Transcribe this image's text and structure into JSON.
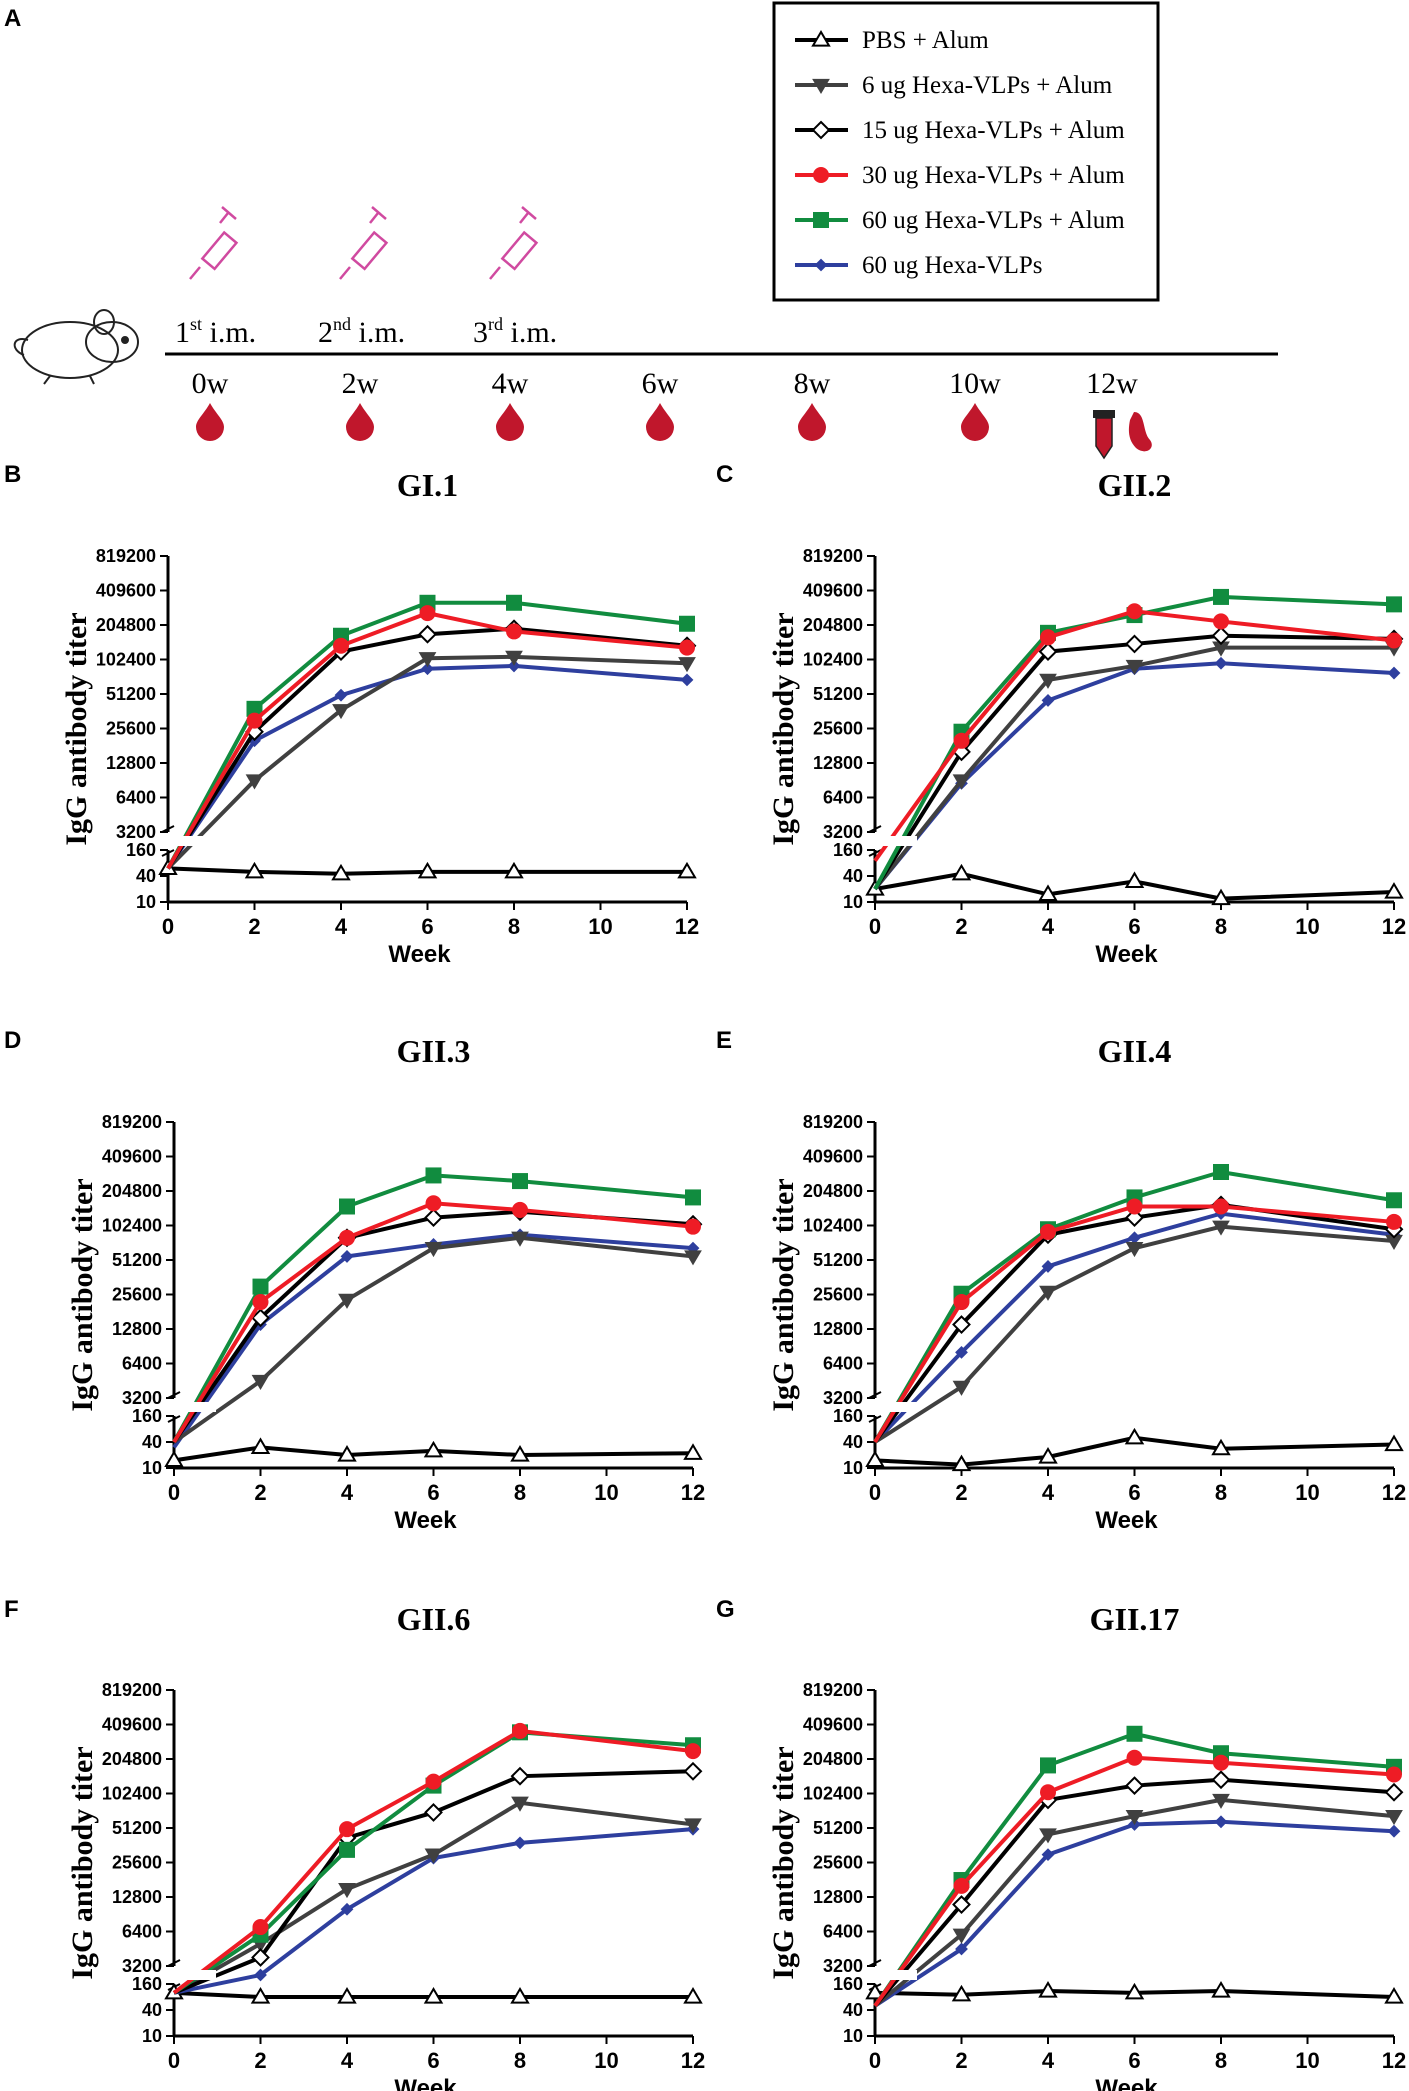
{
  "panel_letters": {
    "a": "A",
    "b": "B",
    "c": "C",
    "d": "D",
    "e": "E",
    "f": "F",
    "g": "G"
  },
  "timeline": {
    "immunizations": [
      {
        "num": "1",
        "sup": "st",
        "label": " i.m."
      },
      {
        "num": "2",
        "sup": "nd",
        "label": " i.m."
      },
      {
        "num": "3",
        "sup": "rd",
        "label": " i.m."
      }
    ],
    "weeks": [
      "0w",
      "2w",
      "4w",
      "6w",
      "8w",
      "10w",
      "12w"
    ]
  },
  "legend": {
    "items": [
      {
        "label": "PBS + Alum",
        "color": "#000000",
        "marker": "triangle-open"
      },
      {
        "label": "6 ug Hexa-VLPs + Alum",
        "color": "#404040",
        "marker": "triangle-down"
      },
      {
        "label": "15 ug Hexa-VLPs + Alum",
        "color": "#000000",
        "marker": "diamond-open"
      },
      {
        "label": "30 ug Hexa-VLPs + Alum",
        "color": "#ee1c25",
        "marker": "circle"
      },
      {
        "label": "60 ug Hexa-VLPs + Alum",
        "color": "#118c3f",
        "marker": "square"
      },
      {
        "label": "60 ug Hexa-VLPs",
        "color": "#2e3f9e",
        "marker": "diamond"
      }
    ]
  },
  "chart_data": [
    {
      "type": "line",
      "title": "GI.1",
      "xlabel": "Week",
      "ylabel": "IgG antibody titer",
      "x": [
        0,
        2,
        4,
        6,
        8,
        12
      ],
      "x_ticks": [
        "0",
        "2",
        "4",
        "6",
        "8",
        "10",
        "12"
      ],
      "y_ticks_upper": [
        "819200",
        "409600",
        "204800",
        "102400",
        "51200",
        "25600",
        "12800",
        "6400",
        "3200"
      ],
      "y_ticks_lower": [
        "160",
        "40",
        "10"
      ],
      "yscale": "log2-broken",
      "series": [
        {
          "name": "PBS + Alum",
          "values": [
            60,
            50,
            45,
            50,
            50,
            50
          ]
        },
        {
          "name": "6 ug Hexa-VLPs + Alum",
          "values": [
            60,
            9000,
            37000,
            105000,
            108000,
            95000
          ]
        },
        {
          "name": "15 ug Hexa-VLPs + Alum",
          "values": [
            60,
            24000,
            120000,
            170000,
            190000,
            135000
          ]
        },
        {
          "name": "30 ug Hexa-VLPs + Alum",
          "values": [
            60,
            30000,
            135000,
            260000,
            180000,
            130000
          ]
        },
        {
          "name": "60 ug Hexa-VLPs + Alum",
          "values": [
            60,
            38000,
            165000,
            320000,
            320000,
            210000
          ]
        },
        {
          "name": "60 ug Hexa-VLPs",
          "values": [
            60,
            20000,
            50000,
            85000,
            90000,
            68000
          ]
        }
      ]
    },
    {
      "type": "line",
      "title": "GII.2",
      "xlabel": "Week",
      "ylabel": "IgG antibody titer",
      "x": [
        0,
        2,
        4,
        6,
        8,
        12
      ],
      "x_ticks": [
        "0",
        "2",
        "4",
        "6",
        "8",
        "10",
        "12"
      ],
      "y_ticks_upper": [
        "819200",
        "409600",
        "204800",
        "102400",
        "51200",
        "25600",
        "12800",
        "6400",
        "3200"
      ],
      "y_ticks_lower": [
        "160",
        "40",
        "10"
      ],
      "yscale": "log2-broken",
      "series": [
        {
          "name": "PBS + Alum",
          "values": [
            20,
            45,
            15,
            30,
            12,
            17
          ]
        },
        {
          "name": "6 ug Hexa-VLPs + Alum",
          "values": [
            20,
            9000,
            68000,
            90000,
            130000,
            130000
          ]
        },
        {
          "name": "15 ug Hexa-VLPs + Alum",
          "values": [
            20,
            16000,
            120000,
            140000,
            165000,
            155000
          ]
        },
        {
          "name": "30 ug Hexa-VLPs + Alum",
          "values": [
            90,
            20000,
            160000,
            270000,
            220000,
            150000
          ]
        },
        {
          "name": "60 ug Hexa-VLPs + Alum",
          "values": [
            20,
            24000,
            175000,
            250000,
            360000,
            310000
          ]
        },
        {
          "name": "60 ug Hexa-VLPs",
          "values": [
            20,
            8500,
            45000,
            85000,
            95000,
            78000
          ]
        }
      ]
    },
    {
      "type": "line",
      "title": "GII.3",
      "xlabel": "Week",
      "ylabel": "IgG antibody titer",
      "x": [
        0,
        2,
        4,
        6,
        8,
        12
      ],
      "x_ticks": [
        "0",
        "2",
        "4",
        "6",
        "8",
        "10",
        "12"
      ],
      "y_ticks_upper": [
        "819200",
        "409600",
        "204800",
        "102400",
        "51200",
        "25600",
        "12800",
        "6400",
        "3200"
      ],
      "y_ticks_lower": [
        "160",
        "40",
        "10"
      ],
      "yscale": "log2-broken",
      "series": [
        {
          "name": "PBS + Alum",
          "values": [
            15,
            30,
            20,
            25,
            20,
            22
          ]
        },
        {
          "name": "6 ug Hexa-VLPs + Alum",
          "values": [
            40,
            4500,
            23000,
            65000,
            80000,
            55000
          ]
        },
        {
          "name": "15 ug Hexa-VLPs + Alum",
          "values": [
            40,
            16000,
            80000,
            120000,
            135000,
            105000
          ]
        },
        {
          "name": "30 ug Hexa-VLPs + Alum",
          "values": [
            40,
            22000,
            80000,
            160000,
            140000,
            100000
          ]
        },
        {
          "name": "60 ug Hexa-VLPs + Alum",
          "values": [
            40,
            30000,
            150000,
            280000,
            250000,
            180000
          ]
        },
        {
          "name": "60 ug Hexa-VLPs",
          "values": [
            30,
            14000,
            55000,
            70000,
            85000,
            65000
          ]
        }
      ]
    },
    {
      "type": "line",
      "title": "GII.4",
      "xlabel": "Week",
      "ylabel": "IgG antibody titer",
      "x": [
        0,
        2,
        4,
        6,
        8,
        12
      ],
      "x_ticks": [
        "0",
        "2",
        "4",
        "6",
        "8",
        "10",
        "12"
      ],
      "y_ticks_upper": [
        "819200",
        "409600",
        "204800",
        "102400",
        "51200",
        "25600",
        "12800",
        "6400",
        "3200"
      ],
      "y_ticks_lower": [
        "160",
        "40",
        "10"
      ],
      "yscale": "log2-broken",
      "series": [
        {
          "name": "PBS + Alum",
          "values": [
            15,
            12,
            18,
            50,
            28,
            35
          ]
        },
        {
          "name": "6 ug Hexa-VLPs + Alum",
          "values": [
            40,
            4000,
            27000,
            65000,
            100000,
            75000
          ]
        },
        {
          "name": "15 ug Hexa-VLPs + Alum",
          "values": [
            40,
            14000,
            85000,
            120000,
            155000,
            95000
          ]
        },
        {
          "name": "30 ug Hexa-VLPs + Alum",
          "values": [
            40,
            22000,
            90000,
            150000,
            150000,
            110000
          ]
        },
        {
          "name": "60 ug Hexa-VLPs + Alum",
          "values": [
            40,
            26000,
            95000,
            180000,
            300000,
            170000
          ]
        },
        {
          "name": "60 ug Hexa-VLPs",
          "values": [
            40,
            8000,
            45000,
            80000,
            130000,
            85000
          ]
        }
      ]
    },
    {
      "type": "line",
      "title": "GII.6",
      "xlabel": "Week",
      "ylabel": "IgG antibody titer",
      "x": [
        0,
        2,
        4,
        6,
        8,
        12
      ],
      "x_ticks": [
        "0",
        "2",
        "4",
        "6",
        "8",
        "10",
        "12"
      ],
      "y_ticks_upper": [
        "819200",
        "409600",
        "204800",
        "102400",
        "51200",
        "25600",
        "12800",
        "6400",
        "3200"
      ],
      "y_ticks_lower": [
        "160",
        "40",
        "10"
      ],
      "yscale": "log2-broken",
      "series": [
        {
          "name": "PBS + Alum",
          "values": [
            100,
            80,
            80,
            80,
            80,
            80
          ]
        },
        {
          "name": "6 ug Hexa-VLPs + Alum",
          "values": [
            100,
            5000,
            15000,
            30000,
            85000,
            55000
          ]
        },
        {
          "name": "15 ug Hexa-VLPs + Alum",
          "values": [
            100,
            3800,
            42000,
            70000,
            145000,
            160000
          ]
        },
        {
          "name": "30 ug Hexa-VLPs + Alum",
          "values": [
            100,
            7000,
            50000,
            130000,
            360000,
            240000
          ]
        },
        {
          "name": "60 ug Hexa-VLPs + Alum",
          "values": [
            100,
            6000,
            33000,
            120000,
            350000,
            270000
          ]
        },
        {
          "name": "60 ug Hexa-VLPs",
          "values": [
            100,
            2000,
            10000,
            28000,
            38000,
            50000
          ]
        }
      ]
    },
    {
      "type": "line",
      "title": "GII.17",
      "xlabel": "Week",
      "ylabel": "IgG antibody titer",
      "x": [
        0,
        2,
        4,
        6,
        8,
        12
      ],
      "x_ticks": [
        "0",
        "2",
        "4",
        "6",
        "8",
        "10",
        "12"
      ],
      "y_ticks_upper": [
        "819200",
        "409600",
        "204800",
        "102400",
        "51200",
        "25600",
        "12800",
        "6400",
        "3200"
      ],
      "y_ticks_lower": [
        "160",
        "40",
        "10"
      ],
      "yscale": "log2-broken",
      "series": [
        {
          "name": "PBS + Alum",
          "values": [
            100,
            90,
            110,
            100,
            110,
            80
          ]
        },
        {
          "name": "6 ug Hexa-VLPs + Alum",
          "values": [
            50,
            6000,
            45000,
            65000,
            90000,
            65000
          ]
        },
        {
          "name": "15 ug Hexa-VLPs + Alum",
          "values": [
            50,
            11000,
            90000,
            120000,
            135000,
            105000
          ]
        },
        {
          "name": "30 ug Hexa-VLPs + Alum",
          "values": [
            50,
            16000,
            105000,
            210000,
            190000,
            150000
          ]
        },
        {
          "name": "60 ug Hexa-VLPs + Alum",
          "values": [
            50,
            18000,
            180000,
            340000,
            230000,
            175000
          ]
        },
        {
          "name": "60 ug Hexa-VLPs",
          "values": [
            50,
            4500,
            30000,
            55000,
            58000,
            48000
          ]
        }
      ]
    }
  ]
}
